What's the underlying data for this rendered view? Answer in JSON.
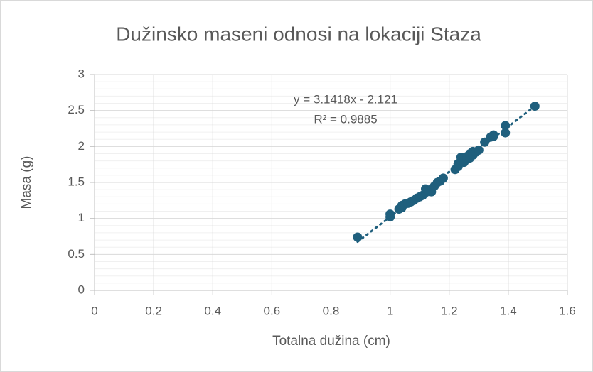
{
  "chart_data": {
    "type": "scatter",
    "title": "Dužinsko maseni odnosi na lokaciji Staza",
    "x_label": "Totalna dužina (cm)",
    "y_label": "Masa (g)",
    "series": [
      {
        "color": "#1f5f7d",
        "x": [
          0.89,
          1.0,
          1.0,
          1.03,
          1.04,
          1.04,
          1.05,
          1.06,
          1.07,
          1.08,
          1.09,
          1.1,
          1.11,
          1.12,
          1.12,
          1.13,
          1.14,
          1.15,
          1.16,
          1.17,
          1.18,
          1.22,
          1.23,
          1.23,
          1.24,
          1.24,
          1.25,
          1.25,
          1.26,
          1.26,
          1.27,
          1.27,
          1.28,
          1.28,
          1.29,
          1.3,
          1.32,
          1.34,
          1.35,
          1.35,
          1.39,
          1.39,
          1.49
        ],
        "values": [
          0.74,
          1.06,
          1.02,
          1.13,
          1.15,
          1.18,
          1.2,
          1.21,
          1.23,
          1.25,
          1.28,
          1.3,
          1.32,
          1.36,
          1.41,
          1.39,
          1.37,
          1.45,
          1.5,
          1.52,
          1.56,
          1.68,
          1.72,
          1.76,
          1.8,
          1.85,
          1.78,
          1.83,
          1.86,
          1.82,
          1.84,
          1.9,
          1.88,
          1.93,
          1.92,
          1.95,
          2.06,
          2.13,
          2.16,
          2.14,
          2.19,
          2.29,
          2.56
        ]
      }
    ],
    "trendline": {
      "slope": 3.1418,
      "intercept": -2.121,
      "equation": "y = 3.1418x - 2.121",
      "r2": "R² = 0.9885"
    },
    "xlim": [
      0,
      1.6
    ],
    "xticks": [
      0,
      0.2,
      0.4,
      0.6,
      0.8,
      1,
      1.2,
      1.4,
      1.6
    ],
    "ylim": [
      0,
      3
    ],
    "yticks": [
      0,
      0.5,
      1,
      1.5,
      2,
      2.5,
      3
    ],
    "yminorticks": [
      0.1,
      0.2,
      0.3,
      0.4,
      0.6,
      0.7,
      0.8,
      0.9,
      1.1,
      1.2,
      1.3,
      1.4,
      1.6,
      1.7,
      1.8,
      1.9,
      2.1,
      2.2,
      2.3,
      2.4,
      2.6,
      2.7,
      2.8,
      2.9
    ],
    "grid": true
  }
}
